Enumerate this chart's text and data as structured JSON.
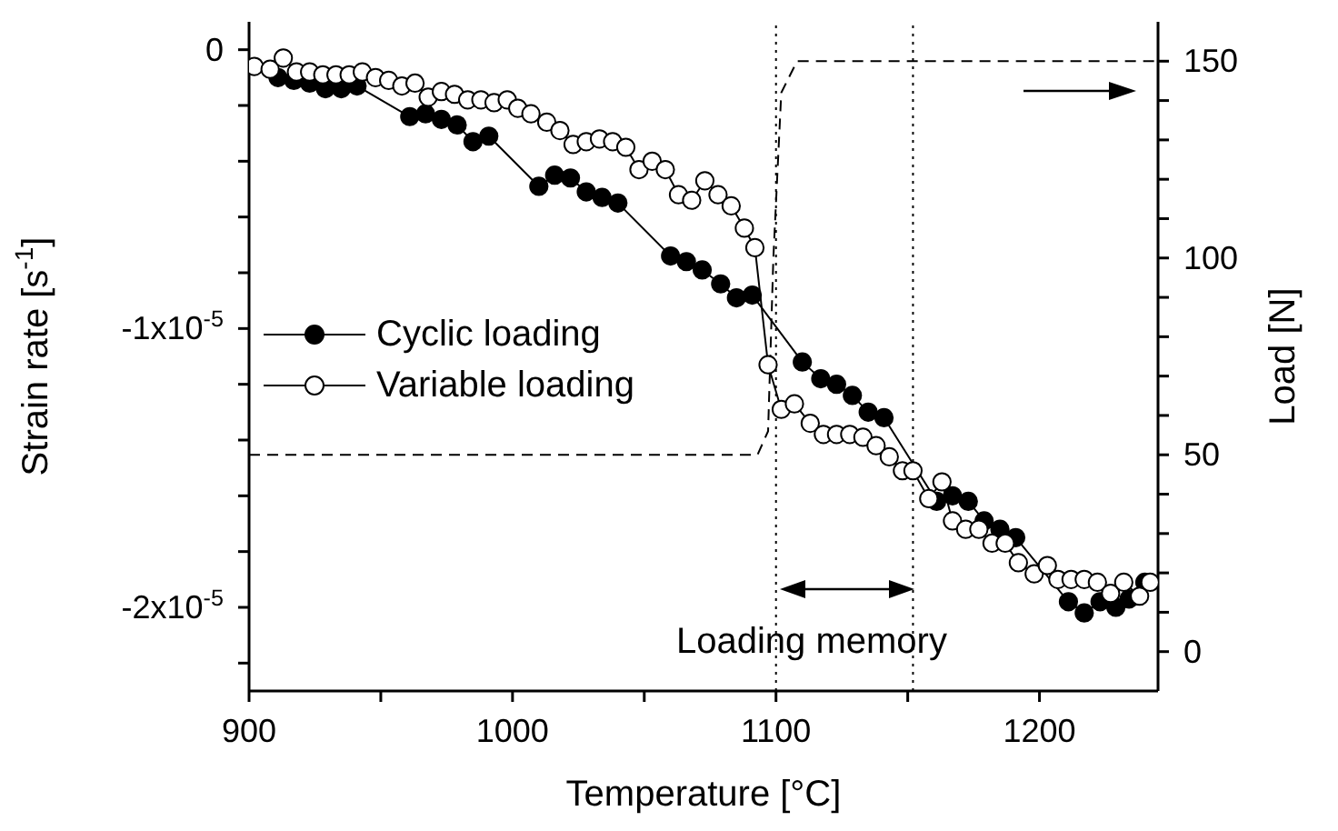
{
  "chart_data": {
    "type": "line",
    "xlabel": "Temperature [°C]",
    "ylabel": "Strain rate [s$^{-1}$]",
    "y2label": "Load [N]",
    "xlim": [
      900,
      1245
    ],
    "xticks": [
      900,
      {
        "value": 950,
        "label": null
      },
      1000,
      {
        "value": 1050,
        "label": null
      },
      1100,
      {
        "value": 1150,
        "label": null
      },
      1200
    ],
    "ylim": [
      -2.3e-05,
      1e-06
    ],
    "yticks": [
      {
        "value": 0,
        "label": "0"
      },
      {
        "value": -2e-06,
        "label": null
      },
      {
        "value": -4e-06,
        "label": null
      },
      {
        "value": -6e-06,
        "label": null
      },
      {
        "value": -8e-06,
        "label": null
      },
      {
        "value": -1e-05,
        "label": "-1x10$^{-5}$"
      },
      {
        "value": -1.2e-05,
        "label": null
      },
      {
        "value": -1.4e-05,
        "label": null
      },
      {
        "value": -1.6e-05,
        "label": null
      },
      {
        "value": -1.8e-05,
        "label": null
      },
      {
        "value": -2e-05,
        "label": "-2x10$^{-5}$"
      },
      {
        "value": -2.2e-05,
        "label": null
      }
    ],
    "y2lim": [
      -10,
      160
    ],
    "y2ticks": [
      0,
      {
        "value": 10,
        "label": null
      },
      {
        "value": 20,
        "label": null
      },
      {
        "value": 30,
        "label": null
      },
      {
        "value": 40,
        "label": null
      },
      50,
      {
        "value": 60,
        "label": null
      },
      {
        "value": 70,
        "label": null
      },
      {
        "value": 80,
        "label": null
      },
      {
        "value": 90,
        "label": null
      },
      100,
      {
        "value": 110,
        "label": null
      },
      {
        "value": 120,
        "label": null
      },
      {
        "value": 130,
        "label": null
      },
      {
        "value": 140,
        "label": null
      },
      150
    ],
    "legend": "left",
    "marker": "circle",
    "series": [
      {
        "name": "Cyclic loading",
        "color": "#000000",
        "x": [
          911,
          917,
          923,
          929,
          935,
          941,
          961,
          967,
          973,
          979,
          985,
          991,
          1010,
          1016,
          1022,
          1028,
          1034,
          1040,
          1060,
          1066,
          1072,
          1079,
          1085,
          1091,
          1110,
          1117,
          1123,
          1129,
          1135,
          1141,
          1161,
          1167,
          1173,
          1179,
          1185,
          1191,
          1211,
          1217,
          1223,
          1229,
          1234,
          1240
        ],
        "values": [
          -1e-06,
          -1.1e-06,
          -1.2e-06,
          -1.4e-06,
          -1.4e-06,
          -1.3e-06,
          -2.4e-06,
          -2.3e-06,
          -2.5e-06,
          -2.7e-06,
          -3.3e-06,
          -3.1e-06,
          -4.9e-06,
          -4.5e-06,
          -4.6e-06,
          -5.1e-06,
          -5.3e-06,
          -5.5e-06,
          -7.4e-06,
          -7.6e-06,
          -7.9e-06,
          -8.4e-06,
          -8.9e-06,
          -8.8e-06,
          -1.12e-05,
          -1.18e-05,
          -1.2e-05,
          -1.24e-05,
          -1.3e-05,
          -1.32e-05,
          -1.62e-05,
          -1.6e-05,
          -1.62e-05,
          -1.69e-05,
          -1.72e-05,
          -1.75e-05,
          -1.98e-05,
          -2.02e-05,
          -1.98e-05,
          -2e-05,
          -1.97e-05,
          -1.91e-05
        ]
      },
      {
        "name": "Variable loading",
        "color": "#000000",
        "x": [
          902,
          908,
          913,
          918,
          923,
          928,
          933,
          938,
          943,
          948,
          953,
          958,
          963,
          968,
          973,
          978,
          983,
          988,
          993,
          998,
          1002,
          1007,
          1013,
          1018,
          1023,
          1028,
          1033,
          1038,
          1043,
          1048,
          1053,
          1058,
          1063,
          1068,
          1073,
          1078,
          1083,
          1088,
          1092,
          1097,
          1102,
          1107,
          1113,
          1118,
          1123,
          1128,
          1133,
          1138,
          1143,
          1148,
          1152,
          1158,
          1163,
          1167,
          1172,
          1177,
          1182,
          1187,
          1192,
          1198,
          1203,
          1207,
          1212,
          1217,
          1222,
          1227,
          1232,
          1238,
          1242
        ],
        "values": [
          -6e-07,
          -7e-07,
          -3e-07,
          -8e-07,
          -8e-07,
          -9e-07,
          -9e-07,
          -9e-07,
          -8e-07,
          -1e-06,
          -1.1e-06,
          -1.3e-06,
          -1.2e-06,
          -1.7e-06,
          -1.5e-06,
          -1.6e-06,
          -1.8e-06,
          -1.8e-06,
          -1.9e-06,
          -1.8e-06,
          -2.1e-06,
          -2.3e-06,
          -2.6e-06,
          -2.9e-06,
          -3.4e-06,
          -3.3e-06,
          -3.2e-06,
          -3.3e-06,
          -3.5e-06,
          -4.3e-06,
          -4e-06,
          -4.3e-06,
          -5.2e-06,
          -5.4e-06,
          -4.7e-06,
          -5.2e-06,
          -5.6e-06,
          -6.4e-06,
          -7.1e-06,
          -1.13e-05,
          -1.29e-05,
          -1.27e-05,
          -1.34e-05,
          -1.38e-05,
          -1.38e-05,
          -1.38e-05,
          -1.39e-05,
          -1.42e-05,
          -1.46e-05,
          -1.51e-05,
          -1.51e-05,
          -1.61e-05,
          -1.55e-05,
          -1.69e-05,
          -1.72e-05,
          -1.72e-05,
          -1.77e-05,
          -1.77e-05,
          -1.84e-05,
          -1.88e-05,
          -1.85e-05,
          -1.9e-05,
          -1.9e-05,
          -1.9e-05,
          -1.91e-05,
          -1.95e-05,
          -1.91e-05,
          -1.96e-05,
          -1.91e-05
        ]
      },
      {
        "type": "line",
        "axis": "y2",
        "color": "#000000",
        "marker": "none",
        "line_style": "dashed",
        "x": [
          900,
          1093,
          1097,
          1099,
          1102,
          1108,
          1245
        ],
        "values": [
          50,
          50,
          56,
          100,
          142,
          150,
          150
        ]
      }
    ],
    "ref_lines": [
      {
        "axis": "x",
        "value": 1100,
        "line_style": "dotted"
      },
      {
        "axis": "x",
        "value": 1152,
        "line_style": "dotted"
      }
    ],
    "annotations": [
      "Loading memory"
    ]
  }
}
